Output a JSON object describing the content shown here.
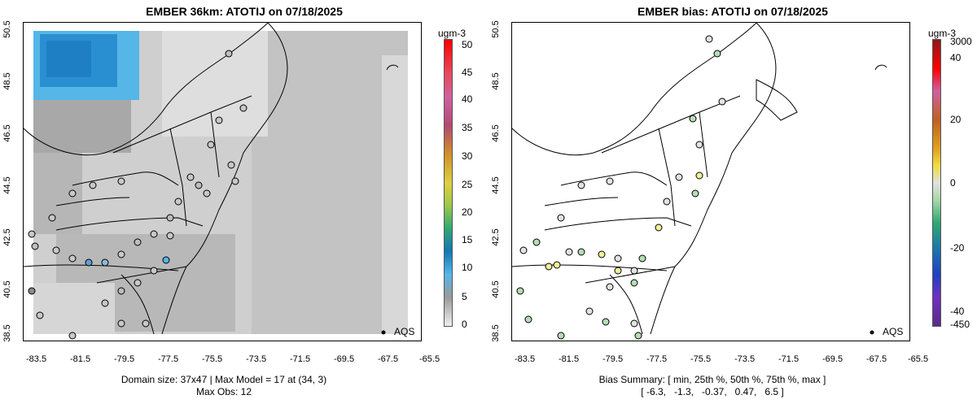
{
  "left": {
    "title": "EMBER 36km: ATOTIJ on 07/18/2025",
    "footer_line1": "Domain size: 37x47 | Max Model = 17 at (34, 3)",
    "footer_line2": "Max Obs: 12",
    "colorbar_unit": "ugm-3",
    "colorbar_labels": [
      "50",
      "45",
      "40",
      "35",
      "30",
      "25",
      "20",
      "15",
      "10",
      "5",
      "0"
    ],
    "legend_label": "AQS"
  },
  "right": {
    "title": "EMBER bias: ATOTIJ on 07/18/2025",
    "footer_line1": "Bias Summary: [ min, 25th %, 50th %, 75th %, max ]",
    "footer_line2": "[ -6.3,   -1.3,   -0.37,   0.47,   6.5 ]",
    "colorbar_unit": "ugm-3",
    "colorbar_labels": [
      "3000",
      "40",
      "20",
      "0",
      "-20",
      "-40",
      "-450"
    ],
    "legend_label": "AQS"
  },
  "axes": {
    "x_ticks": [
      "-83.5",
      "-81.5",
      "-79.5",
      "-77.5",
      "-75.5",
      "-73.5",
      "-71.5",
      "-69.5",
      "-67.5",
      "-65.5"
    ],
    "y_ticks": [
      "38.5",
      "40.5",
      "42.5",
      "44.5",
      "46.5",
      "48.5",
      "50.5"
    ]
  },
  "colors": {
    "high_blue": "#1f7fc4",
    "light_blue": "#56b6e8",
    "grey_mid": "#b4b4b4",
    "grey_light": "#dcdcdc",
    "bias_neutral": "#e3e3e3",
    "bias_positive": "#f0ef9a",
    "bias_negative": "#b7dcb5"
  }
}
